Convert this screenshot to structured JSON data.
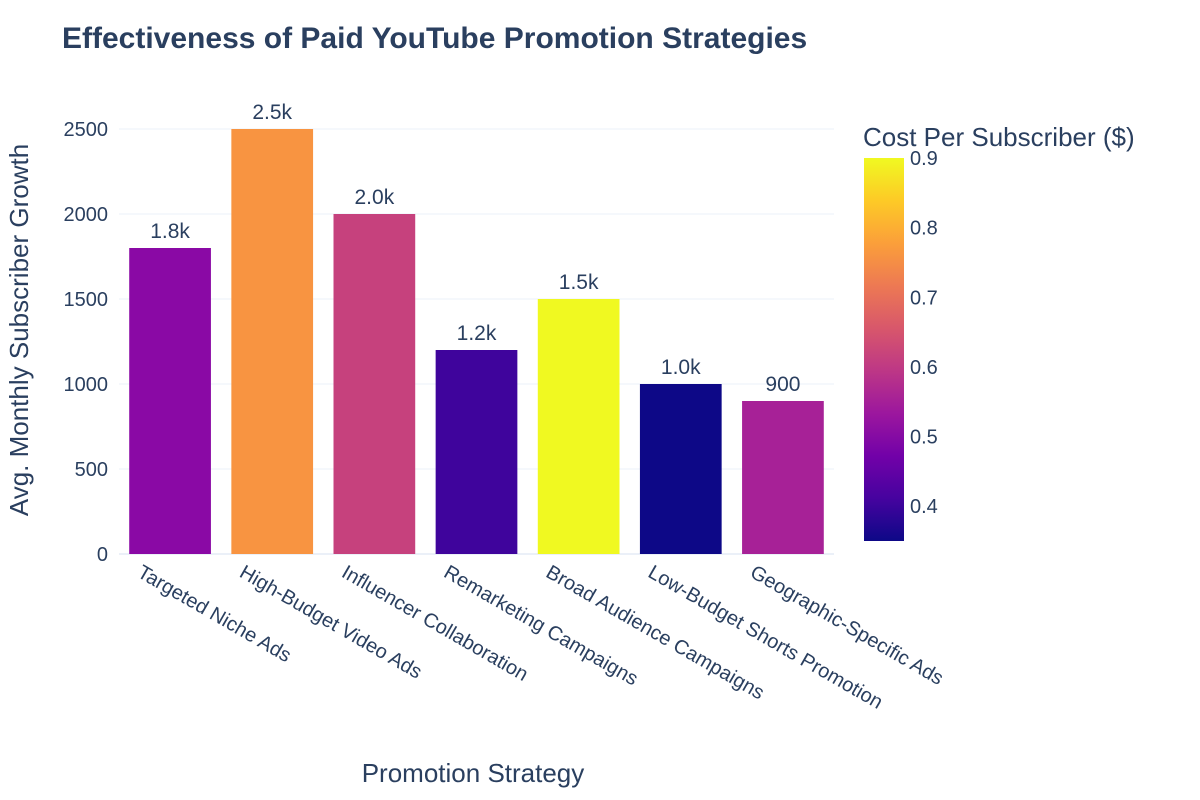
{
  "chart_data": {
    "type": "bar",
    "title": "Effectiveness of Paid YouTube Promotion Strategies",
    "xlabel": "Promotion Strategy",
    "ylabel": "Avg. Monthly Subscriber Growth",
    "categories": [
      "Targeted Niche Ads",
      "High-Budget Video Ads",
      "Influencer Collaboration",
      "Remarketing Campaigns",
      "Broad Audience Campaigns",
      "Low-Budget Shorts Promotion",
      "Geographic-Specific Ads"
    ],
    "values": [
      1800,
      2500,
      2000,
      1200,
      1500,
      1000,
      900
    ],
    "data_labels": [
      "1.8k",
      "2.5k",
      "2.0k",
      "1.2k",
      "1.5k",
      "1.0k",
      "900"
    ],
    "color_values": [
      0.5,
      0.75,
      0.6,
      0.4,
      0.9,
      0.35,
      0.55
    ],
    "colors": [
      "#8a09a5",
      "#f89441",
      "#c6417d",
      "#3f049c",
      "#f0f921",
      "#0d0887",
      "#a72197"
    ],
    "ylim": [
      0,
      2500
    ],
    "y_ticks": [
      "0",
      "500",
      "1000",
      "1500",
      "2000",
      "2500"
    ],
    "grid": true,
    "colorbar": {
      "title": "Cost Per Subscriber ($)",
      "range": [
        0.35,
        0.9
      ],
      "ticks": [
        "0.4",
        "0.5",
        "0.6",
        "0.7",
        "0.8",
        "0.9"
      ],
      "colorscale": [
        "#0d0887",
        "#46039f",
        "#7201a8",
        "#9c179e",
        "#bd3786",
        "#d8576b",
        "#ed7953",
        "#fb9f3a",
        "#fdca26",
        "#f0f921"
      ]
    }
  }
}
